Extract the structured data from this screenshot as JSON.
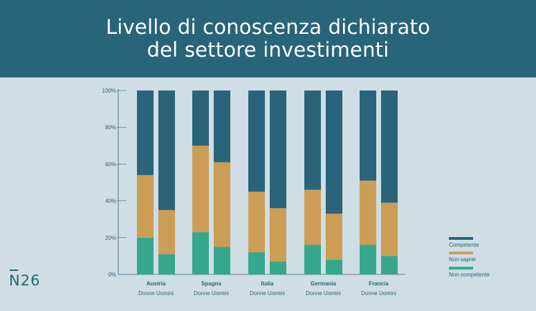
{
  "header": {
    "title_line1": "Livello di conoscenza dichiarato",
    "title_line2": "del settore investimenti"
  },
  "brand": {
    "logo_text": "N26"
  },
  "colors": {
    "competente": "#29647a",
    "non_saprei": "#cc9d55",
    "non_competente": "#36a78d",
    "axis": "#29647a"
  },
  "chart_data": {
    "type": "bar",
    "stacked": true,
    "percent": true,
    "ylim": [
      0,
      100
    ],
    "yticks": [
      "0%",
      "20%",
      "40%",
      "60%",
      "80%",
      "100%"
    ],
    "countries": [
      "Austria",
      "Spagna",
      "Italia",
      "Germania",
      "Francia"
    ],
    "sub_labels": [
      "Donne",
      "Uomini"
    ],
    "bar_label_text": [
      "Donne Uomini",
      "Donne Uomini",
      "Donne Uomini",
      "Donne Uomini",
      "Donne Uomini"
    ],
    "categories": [
      "Austria Donne",
      "Austria Uomini",
      "Spagna Donne",
      "Spagna Uomini",
      "Italia Donne",
      "Italia Uomini",
      "Germania Donne",
      "Germania Uomini",
      "Francia Donne",
      "Francia Uomini"
    ],
    "series": [
      {
        "name": "Non competente",
        "values": [
          20,
          11,
          23,
          15,
          12,
          7,
          16,
          8,
          16,
          10
        ]
      },
      {
        "name": "Non saprei",
        "values": [
          34,
          24,
          47,
          46,
          33,
          29,
          30,
          25,
          35,
          29
        ]
      },
      {
        "name": "Competente",
        "values": [
          46,
          65,
          30,
          39,
          55,
          64,
          54,
          67,
          49,
          61
        ]
      }
    ],
    "legend_position": "bottom-right",
    "legend": [
      "Competente",
      "Non saprei",
      "Non competente"
    ]
  }
}
